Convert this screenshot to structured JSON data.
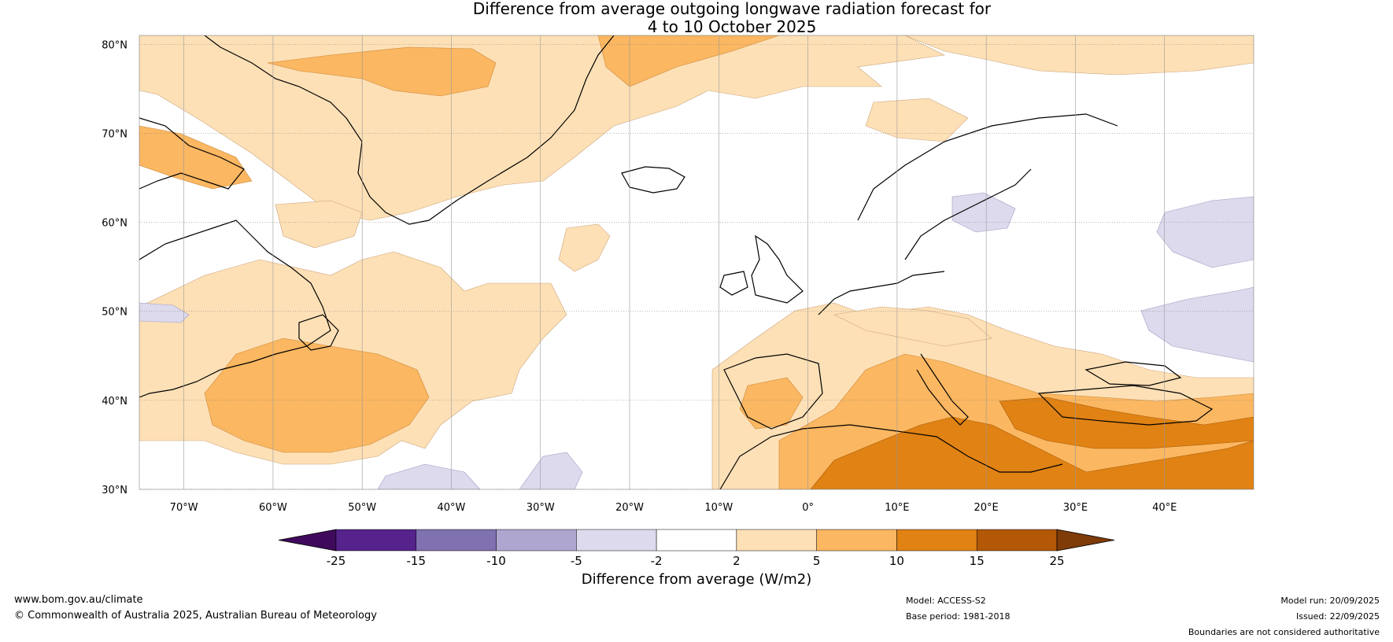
{
  "title": {
    "line1": "Difference from average outgoing longwave radiation forecast for",
    "line2": "4 to 10 October 2025"
  },
  "map": {
    "lat_labels": [
      "80°N",
      "70°N",
      "60°N",
      "50°N",
      "40°N",
      "30°N"
    ],
    "lon_labels": [
      "70°W",
      "60°W",
      "50°W",
      "40°W",
      "30°W",
      "20°W",
      "10°W",
      "0°",
      "10°E",
      "20°E",
      "30°E",
      "40°E"
    ],
    "extent": {
      "lon_min": -75,
      "lon_max": 50,
      "lat_min": 30,
      "lat_max": 81
    }
  },
  "colorbar": {
    "label": "Difference from average (W/m2)",
    "tick_labels": [
      "-25",
      "-15",
      "-10",
      "-5",
      "-2",
      "2",
      "5",
      "10",
      "15",
      "25"
    ],
    "colors": [
      "#3f0a5c",
      "#55238b",
      "#8071b0",
      "#afa6d0",
      "#dcdaec",
      "#ffffff",
      "#fee0b6",
      "#fbb761",
      "#e08214",
      "#b35806",
      "#7f3b08"
    ]
  },
  "footer": {
    "website": "www.bom.gov.au/climate",
    "copyright": "© Commonwealth of Australia 2025, Australian Bureau of Meteorology",
    "model": "Model: ACCESS-S2",
    "base_period": "Base period: 1981-2018",
    "model_run": "Model run: 20/09/2025",
    "issued": "Issued: 22/09/2025",
    "disclaimer": "Boundaries are not considered authoritative"
  }
}
